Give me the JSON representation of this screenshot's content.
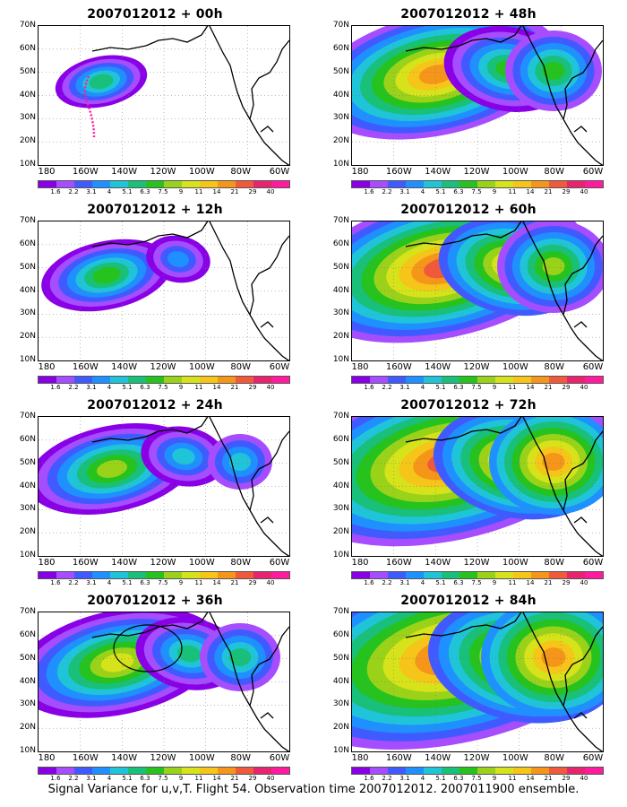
{
  "footer": "Signal Variance for u,v,T. Flight 54. Observation time 2007012012. 2007011900 ensemble.",
  "y_ticks": [
    "70N",
    "60N",
    "50N",
    "40N",
    "30N",
    "20N",
    "10N"
  ],
  "x_ticks": [
    "180",
    "160W",
    "140W",
    "120W",
    "100W",
    "80W",
    "60W"
  ],
  "colorbar": {
    "labels": [
      "1.6",
      "2.2",
      "3.1",
      "4",
      "5.1",
      "6.3",
      "7.5",
      "9",
      "11",
      "14",
      "21",
      "29",
      "40"
    ],
    "colors": [
      "#8a00e6",
      "#a64dff",
      "#3f5bff",
      "#1e90ff",
      "#20c4d8",
      "#18c07a",
      "#26c21e",
      "#9ad21a",
      "#d6e31a",
      "#f5c51a",
      "#f5961a",
      "#f05a3a",
      "#e8246e",
      "#ff1a9e"
    ]
  },
  "panels": [
    {
      "title": "2007012012 + 00h",
      "level": 0
    },
    {
      "title": "2007012012 + 48h",
      "level": 4
    },
    {
      "title": "2007012012 + 12h",
      "level": 1
    },
    {
      "title": "2007012012 + 60h",
      "level": 5
    },
    {
      "title": "2007012012 + 24h",
      "level": 2
    },
    {
      "title": "2007012012 + 72h",
      "level": 6
    },
    {
      "title": "2007012012 + 36h",
      "level": 3
    },
    {
      "title": "2007012012 + 84h",
      "level": 7
    }
  ]
}
